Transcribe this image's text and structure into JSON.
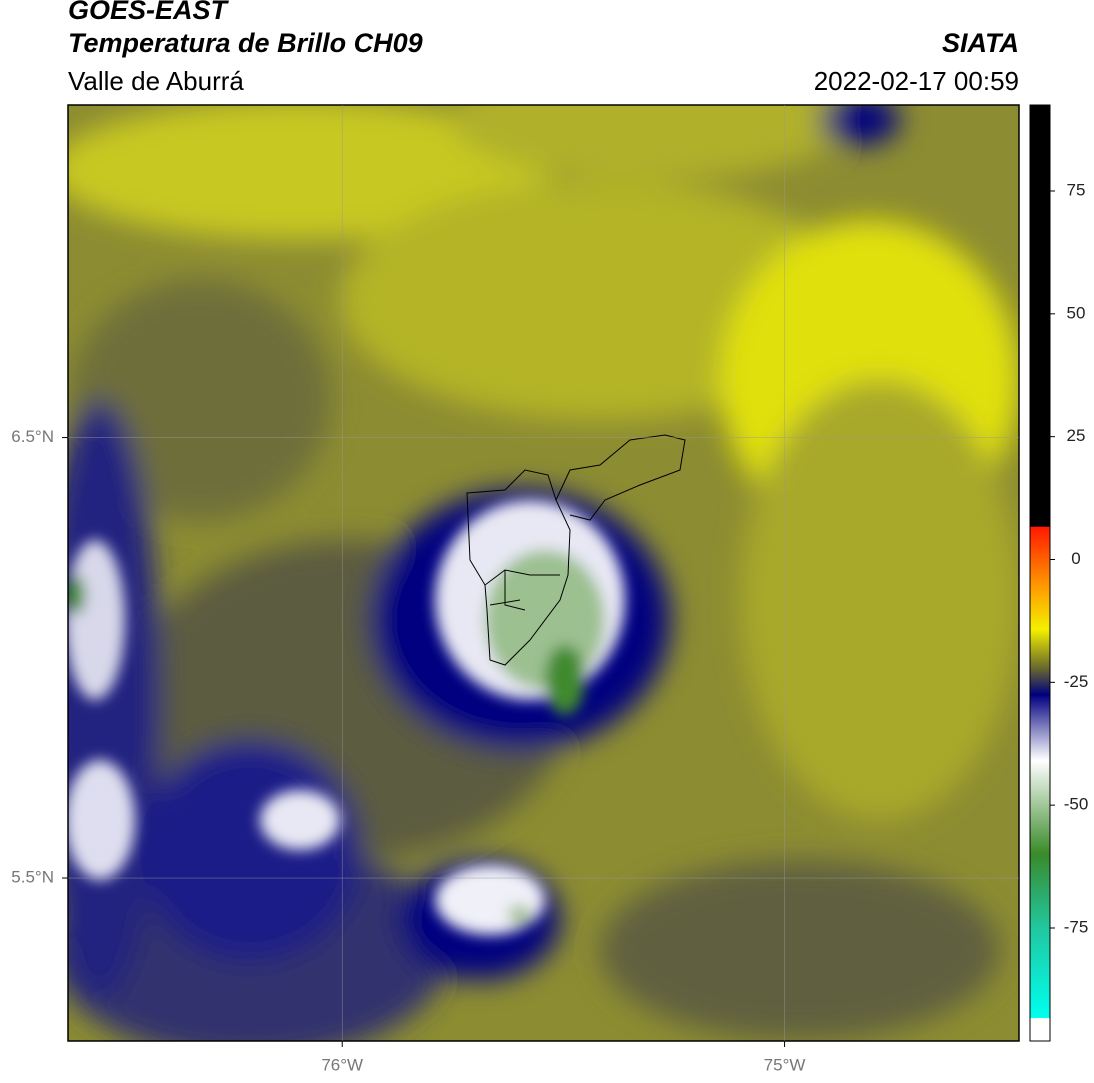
{
  "header": {
    "title": "GOES-EAST",
    "subtitle": "Temperatura de Brillo CH09",
    "region": "Valle de Aburrá",
    "source": "SIATA",
    "datetime": "2022-02-17 00:59"
  },
  "map": {
    "xlim": [
      -76.62,
      -74.47
    ],
    "ylim": [
      5.13,
      7.255
    ],
    "xticks": [
      {
        "value": -76,
        "label": "76°W"
      },
      {
        "value": -75,
        "label": "75°W"
      }
    ],
    "yticks": [
      {
        "value": 6.5,
        "label": "6.5°N"
      },
      {
        "value": 5.5,
        "label": "5.5°N"
      }
    ],
    "grid": true
  },
  "colorbar": {
    "lim": [
      -98,
      92.5
    ],
    "ticks": [
      75,
      50,
      25,
      0,
      -25,
      -50,
      -75
    ]
  }
}
